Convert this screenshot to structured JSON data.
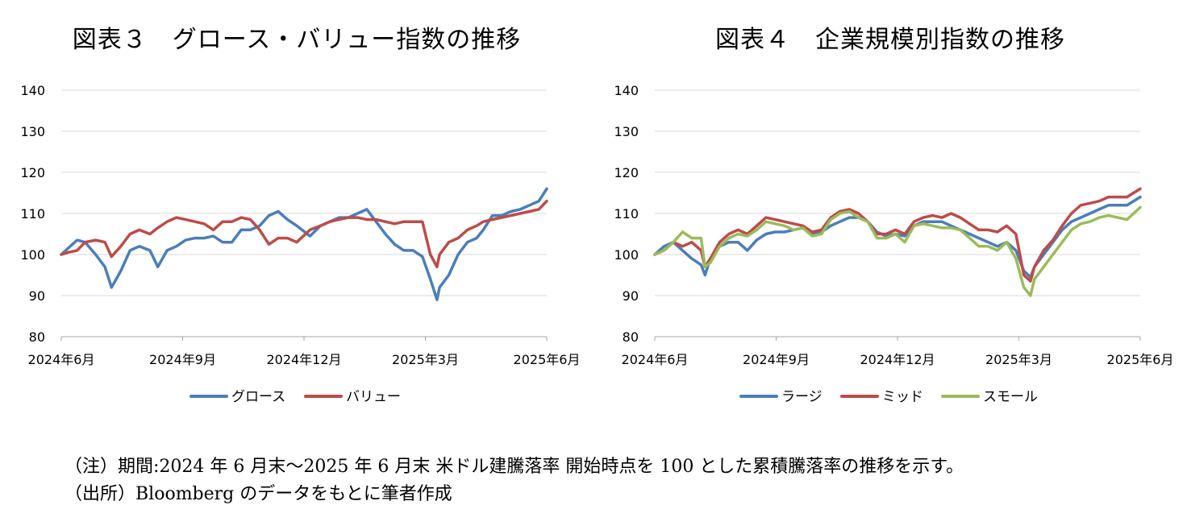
{
  "chart_data": [
    {
      "type": "line",
      "title": "図表３　グロース・バリュー指数の推移",
      "x_ticks": [
        "2024年6月",
        "2024年9月",
        "2024年12月",
        "2025年3月",
        "2025年6月"
      ],
      "x_range": [
        "2024-06-28",
        "2025-06-30"
      ],
      "y_ticks": [
        80,
        90,
        100,
        110,
        120,
        130,
        140
      ],
      "ylim": [
        80,
        140
      ],
      "grid": true,
      "legend": "bottom",
      "series": [
        {
          "name": "グロース",
          "color": "#4a7ebb",
          "x": [
            "2024-06-28",
            "2024-07-03",
            "2024-07-10",
            "2024-07-16",
            "2024-07-24",
            "2024-07-31",
            "2024-08-05",
            "2024-08-12",
            "2024-08-19",
            "2024-08-26",
            "2024-09-03",
            "2024-09-09",
            "2024-09-16",
            "2024-09-23",
            "2024-09-30",
            "2024-10-07",
            "2024-10-14",
            "2024-10-21",
            "2024-10-28",
            "2024-11-04",
            "2024-11-11",
            "2024-11-18",
            "2024-11-25",
            "2024-12-02",
            "2024-12-09",
            "2024-12-16",
            "2024-12-23",
            "2025-01-02",
            "2025-01-10",
            "2025-01-17",
            "2025-01-24",
            "2025-01-31",
            "2025-02-07",
            "2025-02-14",
            "2025-02-21",
            "2025-02-28",
            "2025-03-07",
            "2025-03-14",
            "2025-03-21",
            "2025-03-28",
            "2025-04-03",
            "2025-04-08",
            "2025-04-10",
            "2025-04-17",
            "2025-04-24",
            "2025-05-01",
            "2025-05-08",
            "2025-05-13",
            "2025-05-20",
            "2025-05-27",
            "2025-06-03",
            "2025-06-10",
            "2025-06-17",
            "2025-06-24",
            "2025-06-30"
          ],
          "values": [
            100,
            101.5,
            103.5,
            103,
            100,
            97,
            92,
            96,
            101,
            102,
            101,
            97,
            101,
            102,
            103.5,
            104,
            104,
            104.5,
            103,
            103,
            106,
            106,
            107,
            109.5,
            110.5,
            108.5,
            107,
            104.5,
            107,
            108,
            109,
            109,
            110,
            111,
            108,
            105,
            102.5,
            101,
            101,
            99.5,
            94,
            89,
            92,
            95,
            100,
            103,
            104,
            106,
            109.5,
            109.5,
            110.5,
            111,
            112,
            113,
            116
          ]
        },
        {
          "name": "バリュー",
          "color": "#be4b48",
          "x": [
            "2024-06-28",
            "2024-07-03",
            "2024-07-10",
            "2024-07-16",
            "2024-07-24",
            "2024-07-31",
            "2024-08-05",
            "2024-08-12",
            "2024-08-19",
            "2024-08-26",
            "2024-09-03",
            "2024-09-09",
            "2024-09-16",
            "2024-09-23",
            "2024-09-30",
            "2024-10-07",
            "2024-10-14",
            "2024-10-21",
            "2024-10-28",
            "2024-11-04",
            "2024-11-11",
            "2024-11-18",
            "2024-11-25",
            "2024-12-02",
            "2024-12-09",
            "2024-12-16",
            "2024-12-23",
            "2025-01-02",
            "2025-01-10",
            "2025-01-17",
            "2025-01-24",
            "2025-01-31",
            "2025-02-07",
            "2025-02-14",
            "2025-02-21",
            "2025-02-28",
            "2025-03-07",
            "2025-03-14",
            "2025-03-21",
            "2025-03-28",
            "2025-04-03",
            "2025-04-08",
            "2025-04-10",
            "2025-04-17",
            "2025-04-24",
            "2025-05-01",
            "2025-05-08",
            "2025-05-13",
            "2025-05-20",
            "2025-05-27",
            "2025-06-03",
            "2025-06-10",
            "2025-06-17",
            "2025-06-24",
            "2025-06-30"
          ],
          "values": [
            100,
            100.5,
            101,
            103,
            103.5,
            103,
            99.5,
            102,
            105,
            106,
            105,
            106.5,
            108,
            109,
            108.5,
            108,
            107.5,
            106,
            108,
            108,
            109,
            108.5,
            106,
            102.5,
            104,
            104,
            103,
            106,
            107,
            108,
            108.5,
            109,
            109,
            108.5,
            108.5,
            108,
            107.5,
            108,
            108,
            108,
            100,
            97,
            100,
            103,
            104,
            106,
            107,
            108,
            108.5,
            109,
            109.5,
            110,
            110.5,
            111,
            113
          ]
        }
      ]
    },
    {
      "type": "line",
      "title": "図表４　企業規模別指数の推移",
      "x_ticks": [
        "2024年6月",
        "2024年9月",
        "2024年12月",
        "2025年3月",
        "2025年6月"
      ],
      "x_range": [
        "2024-06-28",
        "2025-06-30"
      ],
      "y_ticks": [
        80,
        90,
        100,
        110,
        120,
        130,
        140
      ],
      "ylim": [
        80,
        140
      ],
      "grid": true,
      "legend": "bottom",
      "series": [
        {
          "name": "ラージ",
          "color": "#4a7ebb",
          "x": [
            "2024-06-28",
            "2024-07-05",
            "2024-07-12",
            "2024-07-19",
            "2024-07-26",
            "2024-08-02",
            "2024-08-05",
            "2024-08-09",
            "2024-08-16",
            "2024-08-23",
            "2024-08-30",
            "2024-09-06",
            "2024-09-13",
            "2024-09-20",
            "2024-09-27",
            "2024-10-04",
            "2024-10-11",
            "2024-10-18",
            "2024-10-25",
            "2024-11-01",
            "2024-11-08",
            "2024-11-15",
            "2024-11-22",
            "2024-11-29",
            "2024-12-06",
            "2024-12-13",
            "2024-12-20",
            "2024-12-27",
            "2025-01-03",
            "2025-01-10",
            "2025-01-17",
            "2025-01-24",
            "2025-01-31",
            "2025-02-07",
            "2025-02-14",
            "2025-02-21",
            "2025-02-28",
            "2025-03-07",
            "2025-03-14",
            "2025-03-21",
            "2025-03-28",
            "2025-04-03",
            "2025-04-08",
            "2025-04-11",
            "2025-04-18",
            "2025-04-25",
            "2025-05-02",
            "2025-05-09",
            "2025-05-16",
            "2025-05-23",
            "2025-05-30",
            "2025-06-06",
            "2025-06-13",
            "2025-06-20",
            "2025-06-30"
          ],
          "values": [
            100,
            102,
            103,
            101,
            99,
            97.5,
            95,
            99,
            102,
            103,
            103,
            101,
            103.5,
            105,
            105.5,
            105.5,
            106,
            106.5,
            105,
            105.5,
            107,
            108,
            109,
            109,
            108,
            105.5,
            104.5,
            105,
            104.5,
            107,
            108,
            108,
            108,
            107,
            106,
            105,
            104,
            103,
            102,
            103,
            101,
            96,
            94.5,
            97,
            100,
            103,
            106,
            108,
            109,
            110,
            111,
            112,
            112,
            112,
            114
          ]
        },
        {
          "name": "ミッド",
          "color": "#be4b48",
          "x": [
            "2024-06-28",
            "2024-07-05",
            "2024-07-12",
            "2024-07-19",
            "2024-07-26",
            "2024-08-02",
            "2024-08-05",
            "2024-08-09",
            "2024-08-16",
            "2024-08-23",
            "2024-08-30",
            "2024-09-06",
            "2024-09-13",
            "2024-09-20",
            "2024-09-27",
            "2024-10-04",
            "2024-10-11",
            "2024-10-18",
            "2024-10-25",
            "2024-11-01",
            "2024-11-08",
            "2024-11-15",
            "2024-11-22",
            "2024-11-29",
            "2024-12-06",
            "2024-12-13",
            "2024-12-20",
            "2024-12-27",
            "2025-01-03",
            "2025-01-10",
            "2025-01-17",
            "2025-01-24",
            "2025-01-31",
            "2025-02-07",
            "2025-02-14",
            "2025-02-21",
            "2025-02-28",
            "2025-03-07",
            "2025-03-14",
            "2025-03-21",
            "2025-03-28",
            "2025-04-03",
            "2025-04-08",
            "2025-04-11",
            "2025-04-18",
            "2025-04-25",
            "2025-05-02",
            "2025-05-09",
            "2025-05-16",
            "2025-05-23",
            "2025-05-30",
            "2025-06-06",
            "2025-06-13",
            "2025-06-20",
            "2025-06-30"
          ],
          "values": [
            100,
            101,
            103,
            102,
            103,
            101,
            97,
            99,
            103,
            105,
            106,
            105,
            107,
            109,
            108.5,
            108,
            107.5,
            107,
            105.5,
            106,
            109,
            110.5,
            111,
            110,
            108,
            105,
            105,
            106,
            105,
            108,
            109,
            109.5,
            109,
            110,
            109,
            107.5,
            106,
            106,
            105.5,
            107,
            105,
            95,
            93.5,
            97,
            101,
            103.5,
            107,
            110,
            112,
            112.5,
            113,
            114,
            114,
            114,
            116
          ]
        },
        {
          "name": "スモール",
          "color": "#9bbb59",
          "x": [
            "2024-06-28",
            "2024-07-05",
            "2024-07-12",
            "2024-07-19",
            "2024-07-26",
            "2024-08-02",
            "2024-08-05",
            "2024-08-09",
            "2024-08-16",
            "2024-08-23",
            "2024-08-30",
            "2024-09-06",
            "2024-09-13",
            "2024-09-20",
            "2024-09-27",
            "2024-10-04",
            "2024-10-11",
            "2024-10-18",
            "2024-10-25",
            "2024-11-01",
            "2024-11-08",
            "2024-11-15",
            "2024-11-22",
            "2024-11-29",
            "2024-12-06",
            "2024-12-13",
            "2024-12-20",
            "2024-12-27",
            "2025-01-03",
            "2025-01-10",
            "2025-01-17",
            "2025-01-24",
            "2025-01-31",
            "2025-02-07",
            "2025-02-14",
            "2025-02-21",
            "2025-02-28",
            "2025-03-07",
            "2025-03-14",
            "2025-03-21",
            "2025-03-28",
            "2025-04-03",
            "2025-04-08",
            "2025-04-11",
            "2025-04-18",
            "2025-04-25",
            "2025-05-02",
            "2025-05-09",
            "2025-05-16",
            "2025-05-23",
            "2025-05-30",
            "2025-06-06",
            "2025-06-13",
            "2025-06-20",
            "2025-06-30"
          ],
          "values": [
            100,
            101,
            103,
            105.5,
            104,
            104,
            97,
            98,
            102,
            104,
            105,
            104.5,
            106,
            108,
            107.5,
            107,
            106,
            106.5,
            104.5,
            105,
            108.5,
            110,
            110.5,
            109,
            108,
            104,
            104,
            105,
            103,
            107,
            107.5,
            107,
            106.5,
            106.5,
            106,
            104,
            102,
            102,
            101,
            103,
            99,
            92,
            90,
            94,
            97,
            100,
            103,
            106,
            107.5,
            108,
            109,
            109.5,
            109,
            108.5,
            111.5
          ]
        }
      ]
    }
  ],
  "notes": [
    "（注）期間:2024 年 6 月末～2025 年 6 月末 米ドル建騰落率 開始時点を 100 とした累積騰落率の推移を示す。",
    "（出所）Bloomberg のデータをもとに筆者作成"
  ]
}
